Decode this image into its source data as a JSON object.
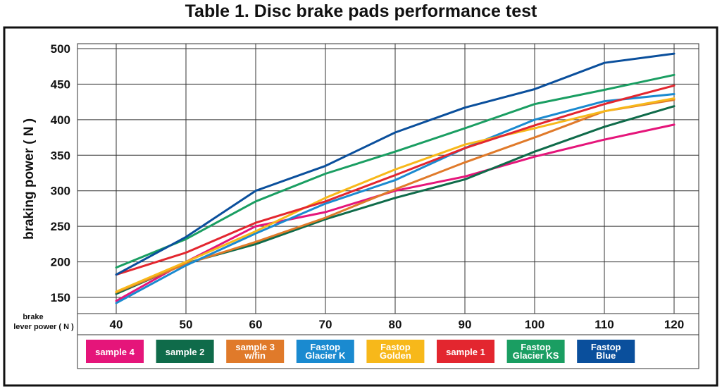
{
  "chart_data": {
    "type": "line",
    "title": "Table 1. Disc brake pads performance test",
    "ylabel": "braking power ( N )",
    "xlabel_lines": [
      "brake",
      "lever power ( N )"
    ],
    "x": [
      40,
      50,
      60,
      70,
      80,
      90,
      100,
      110,
      120
    ],
    "x_tick_labels": [
      "40",
      "50",
      "60",
      "70",
      "80",
      "90",
      "100",
      "110",
      "120"
    ],
    "y_ticks": [
      150,
      200,
      250,
      300,
      350,
      400,
      450,
      500
    ],
    "ylim": [
      130,
      505
    ],
    "grid": true,
    "legend_position": "bottom",
    "series": [
      {
        "name": "sample 4",
        "label_lines": [
          "sample 4"
        ],
        "color": "#e5157a",
        "values": [
          145,
          200,
          250,
          270,
          300,
          320,
          348,
          372,
          393
        ]
      },
      {
        "name": "sample 2",
        "label_lines": [
          "sample 2"
        ],
        "color": "#0f6b4a",
        "values": [
          155,
          198,
          225,
          260,
          290,
          316,
          355,
          390,
          419
        ]
      },
      {
        "name": "sample 3 w/fin",
        "label_lines": [
          "sample 3",
          "w/fin"
        ],
        "color": "#e07a2a",
        "values": [
          157,
          197,
          228,
          262,
          302,
          340,
          375,
          412,
          428
        ]
      },
      {
        "name": "Fastop Glacier K",
        "label_lines": [
          "Fastop",
          "Glacier K"
        ],
        "color": "#1a8ad0",
        "values": [
          142,
          195,
          240,
          282,
          315,
          360,
          400,
          426,
          436
        ]
      },
      {
        "name": "Fastop Golden",
        "label_lines": [
          "Fastop",
          "Golden"
        ],
        "color": "#f7b81a",
        "values": [
          158,
          200,
          243,
          290,
          330,
          365,
          388,
          412,
          430
        ]
      },
      {
        "name": "sample 1",
        "label_lines": [
          "sample 1"
        ],
        "color": "#e3262f",
        "values": [
          182,
          213,
          255,
          285,
          322,
          360,
          392,
          422,
          448
        ]
      },
      {
        "name": "Fastop Glacier KS",
        "label_lines": [
          "Fastop",
          "Glacier KS"
        ],
        "color": "#1a9e62",
        "values": [
          192,
          232,
          285,
          324,
          355,
          388,
          422,
          442,
          463
        ]
      },
      {
        "name": "Fastop Blue",
        "label_lines": [
          "Fastop",
          "Blue"
        ],
        "color": "#0a4f9c",
        "values": [
          182,
          235,
          300,
          335,
          382,
          417,
          443,
          480,
          493
        ]
      }
    ]
  }
}
